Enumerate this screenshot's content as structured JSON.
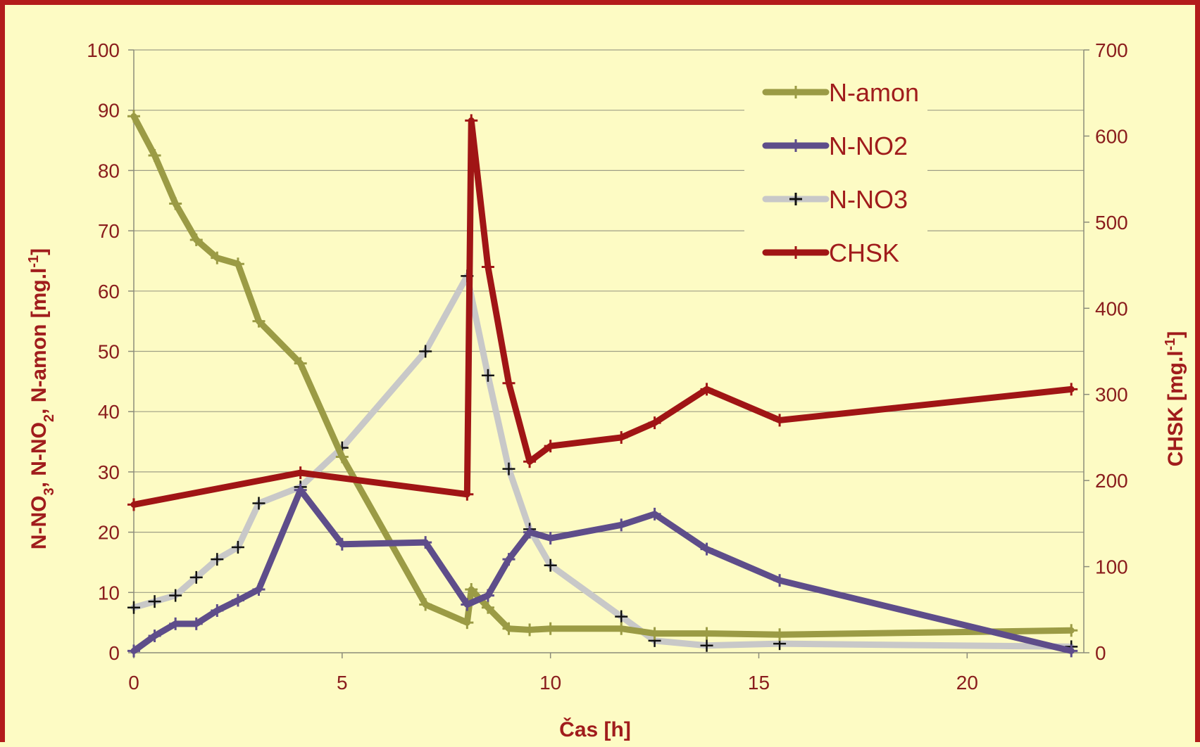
{
  "chart_data": {
    "type": "line",
    "xlabel": "Čas [h]",
    "ylabel_left": {
      "parts": [
        "N-NO",
        "3",
        ", N-NO",
        "2",
        ", N-amon [mg.l",
        "-1",
        "]"
      ]
    },
    "ylabel_right": {
      "parts": [
        "CHSK [mg.l",
        "-1",
        "]"
      ]
    },
    "xlim": [
      0,
      22.8
    ],
    "ylim_left": [
      0,
      100
    ],
    "ylim_right": [
      0,
      700
    ],
    "x_ticks": [
      0,
      5,
      10,
      15,
      20
    ],
    "y_ticks_left": [
      0,
      10,
      20,
      30,
      40,
      50,
      60,
      70,
      80,
      90,
      100
    ],
    "y_ticks_right": [
      0,
      100,
      200,
      300,
      400,
      500,
      600,
      700
    ],
    "grid": true,
    "legend_position": "top-right",
    "series": [
      {
        "name": "N-amon",
        "color": "#9b9b45",
        "axis": "left",
        "marker": "plus",
        "x": [
          0,
          0.5,
          1,
          1.5,
          2,
          2.5,
          3,
          4,
          5,
          7,
          8,
          8.1,
          8.5,
          9,
          9.5,
          10,
          11.7,
          12.5,
          13.75,
          15.5,
          22.5
        ],
        "y": [
          89,
          82.5,
          74.5,
          68.5,
          65.5,
          64.5,
          55,
          48,
          32.5,
          8,
          5,
          10.5,
          7.5,
          4,
          3.8,
          4,
          4,
          3.2,
          3.2,
          3,
          3.7
        ]
      },
      {
        "name": "N-NO2",
        "color": "#5e4d8a",
        "axis": "left",
        "marker": "plus",
        "x": [
          0,
          0.5,
          1,
          1.5,
          2,
          2.5,
          3,
          4,
          5,
          7,
          8,
          8.5,
          9,
          9.5,
          10,
          11.7,
          12.5,
          13.75,
          15.5,
          22.5
        ],
        "y": [
          0.3,
          2.8,
          4.8,
          4.8,
          7,
          8.7,
          10.5,
          27,
          18,
          18.3,
          8,
          9.5,
          15.5,
          20,
          19,
          21.2,
          23,
          17.2,
          12,
          0.3
        ]
      },
      {
        "name": "N-NO3",
        "color": "#c8c8c8",
        "axis": "left",
        "marker": "plus-black",
        "x": [
          0,
          0.5,
          1,
          1.5,
          2,
          2.5,
          3,
          4,
          5,
          7,
          8,
          8.5,
          9,
          9.5,
          10,
          11.7,
          12.5,
          13.75,
          15.5,
          22.5
        ],
        "y": [
          7.5,
          8.5,
          9.5,
          12.5,
          15.5,
          17.5,
          24.8,
          27.5,
          34,
          50,
          62.5,
          46,
          30.5,
          20.5,
          14.5,
          6,
          2,
          1.2,
          1.5,
          1
        ]
      },
      {
        "name": "CHSK",
        "color": "#a01515",
        "axis": "right",
        "marker": "plus",
        "x": [
          0,
          4,
          8,
          8.1,
          8.5,
          9,
          9.5,
          10,
          11.7,
          12.5,
          13.75,
          15.5,
          22.5
        ],
        "y": [
          172,
          209,
          184,
          618,
          448,
          313,
          222,
          240,
          250,
          267,
          306,
          270,
          306
        ]
      }
    ]
  }
}
